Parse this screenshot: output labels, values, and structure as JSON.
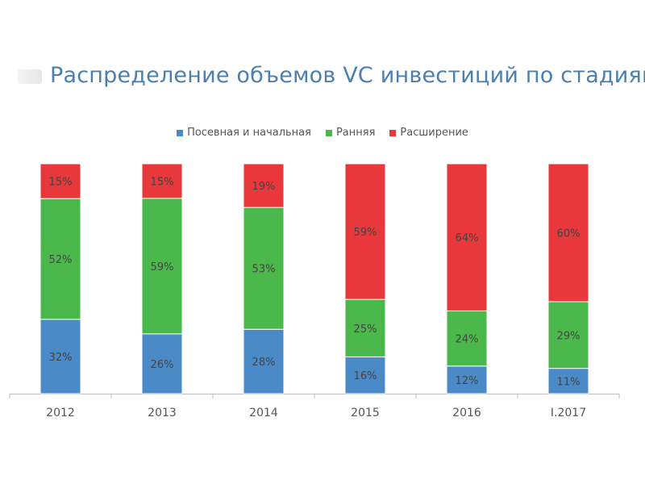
{
  "chart_data": {
    "type": "bar",
    "stacked": true,
    "percent_stacked": true,
    "title": "Распределение объемов VC инвестиций по стадиям",
    "categories": [
      "2012",
      "2013",
      "2014",
      "2015",
      "2016",
      "I.2017"
    ],
    "series": [
      {
        "name": "Посевная и начальная",
        "values": [
          32,
          26,
          28,
          16,
          12,
          11
        ],
        "color": "#4a8ac6"
      },
      {
        "name": "Ранняя",
        "values": [
          52,
          59,
          53,
          25,
          24,
          29
        ],
        "color": "#4bb84b"
      },
      {
        "name": "Расширение",
        "values": [
          15,
          15,
          19,
          59,
          64,
          60
        ],
        "color": "#e8383b"
      }
    ],
    "value_suffix": "%",
    "ylim": [
      0,
      100
    ],
    "legend_position": "top-center",
    "grid": false
  }
}
